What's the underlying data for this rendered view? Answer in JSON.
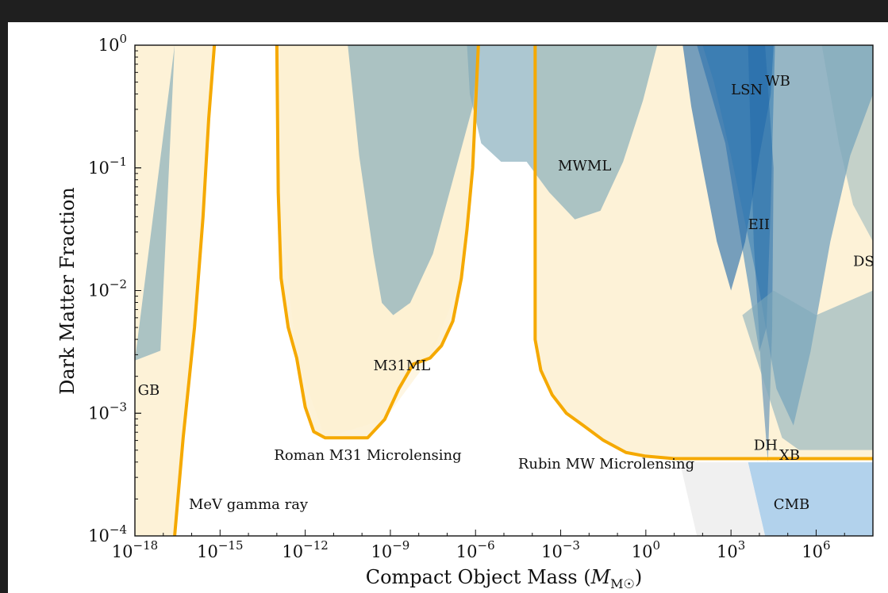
{
  "chart_data": {
    "type": "area",
    "xlabel": "Compact Object Mass",
    "xlabel_unit": "M☉",
    "ylabel": "Dark Matter Fraction",
    "xscale": "log",
    "yscale": "log",
    "xlim": [
      1e-18,
      100000000.0
    ],
    "ylim": [
      0.0001,
      1
    ],
    "x_ticks": [
      {
        "base": "10",
        "exp": "−18",
        "value": -18
      },
      {
        "base": "10",
        "exp": "−15",
        "value": -15
      },
      {
        "base": "10",
        "exp": "−12",
        "value": -12
      },
      {
        "base": "10",
        "exp": "−9",
        "value": -9
      },
      {
        "base": "10",
        "exp": "−6",
        "value": -6
      },
      {
        "base": "10",
        "exp": "−3",
        "value": -3
      },
      {
        "base": "10",
        "exp": "0",
        "value": 0
      },
      {
        "base": "10",
        "exp": "3",
        "value": 3
      },
      {
        "base": "10",
        "exp": "6",
        "value": 6
      }
    ],
    "y_ticks": [
      {
        "base": "10",
        "exp": "0",
        "value": 0
      },
      {
        "base": "10",
        "exp": "−1",
        "value": -1
      },
      {
        "base": "10",
        "exp": "−2",
        "value": -2
      },
      {
        "base": "10",
        "exp": "−3",
        "value": -3
      },
      {
        "base": "10",
        "exp": "−4",
        "value": -4
      }
    ],
    "constraints": [
      {
        "name": "GB",
        "color": "#7fa9b9",
        "opacity": 0.65,
        "points": [
          [
            -18,
            -2.57
          ],
          [
            -17.1,
            -2.49
          ],
          [
            -16.9,
            -1.5
          ],
          [
            -16.6,
            0
          ]
        ]
      },
      {
        "name": "M31ML",
        "color": "#7fa9b9",
        "opacity": 0.65,
        "points": [
          [
            -10.5,
            0
          ],
          [
            -10.1,
            -0.9
          ],
          [
            -9.6,
            -1.7
          ],
          [
            -9.3,
            -2.1
          ],
          [
            -8.9,
            -2.2
          ],
          [
            -8.3,
            -2.1
          ],
          [
            -7.5,
            -1.7
          ],
          [
            -6.8,
            -1.1
          ],
          [
            -6.1,
            -0.5
          ],
          [
            -5.9,
            0
          ]
        ]
      },
      {
        "name": "MWML",
        "color": "#7fa9b9",
        "opacity": 0.65,
        "points": [
          [
            -6.3,
            0
          ],
          [
            -6.2,
            -0.4
          ],
          [
            -5.8,
            -0.8
          ],
          [
            -5.1,
            -0.95
          ],
          [
            -4.2,
            -0.95
          ],
          [
            -3.4,
            -1.2
          ],
          [
            -2.5,
            -1.42
          ],
          [
            -1.6,
            -1.35
          ],
          [
            -0.8,
            -0.95
          ],
          [
            -0.1,
            -0.45
          ],
          [
            0.4,
            0
          ]
        ]
      },
      {
        "name": "EII",
        "color": "#2f7ab3",
        "opacity": 0.55,
        "points": [
          [
            1.8,
            0
          ],
          [
            2.8,
            -0.8
          ],
          [
            3.5,
            -1.8
          ],
          [
            4.0,
            -2.5
          ],
          [
            4.25,
            -2.3
          ],
          [
            4.4,
            -1.3
          ],
          [
            4.55,
            0
          ]
        ]
      },
      {
        "name": "LSN",
        "color": "#1c66a8",
        "opacity": 0.6,
        "points": [
          [
            1.3,
            0
          ],
          [
            4.5,
            0
          ],
          [
            4.4,
            -0.4
          ],
          [
            4.0,
            -0.9
          ],
          [
            3.5,
            -1.6
          ],
          [
            3.0,
            -2.0
          ],
          [
            2.5,
            -1.6
          ],
          [
            2.0,
            -1.0
          ],
          [
            1.6,
            -0.5
          ]
        ]
      },
      {
        "name": "WB",
        "color": "#2f7ab3",
        "opacity": 0.5,
        "points": [
          [
            2.0,
            0
          ],
          [
            8.0,
            0
          ],
          [
            8.0,
            -0.4
          ],
          [
            7.2,
            -0.9
          ],
          [
            6.5,
            -1.6
          ],
          [
            5.8,
            -2.5
          ],
          [
            5.2,
            -3.1
          ],
          [
            4.6,
            -2.8
          ],
          [
            4.0,
            -2.0
          ],
          [
            3.0,
            -0.9
          ],
          [
            2.4,
            -0.3
          ]
        ]
      },
      {
        "name": "DH",
        "color": "#1c66a8",
        "opacity": 0.45,
        "points": [
          [
            4.2,
            0
          ],
          [
            4.5,
            -1.0
          ],
          [
            4.45,
            -2.3
          ],
          [
            4.3,
            -3.4
          ],
          [
            4.1,
            -2.8
          ],
          [
            3.8,
            -1.6
          ],
          [
            3.6,
            0
          ]
        ]
      },
      {
        "name": "DS",
        "color": "#7fa9b9",
        "opacity": 0.45,
        "points": [
          [
            6.2,
            0
          ],
          [
            8.0,
            0
          ],
          [
            8.0,
            -1.6
          ],
          [
            7.3,
            -1.3
          ],
          [
            6.8,
            -0.8
          ]
        ]
      },
      {
        "name": "CMB",
        "color": "#7fb4df",
        "opacity": 0.6,
        "points": [
          [
            3.6,
            -3.4
          ],
          [
            8.0,
            -3.4
          ],
          [
            8.0,
            -4.0
          ],
          [
            4.2,
            -4.0
          ]
        ]
      },
      {
        "name": "XB",
        "color": "#7fa9b9",
        "opacity": 0.55,
        "points": [
          [
            3.4,
            -2.2
          ],
          [
            4.8,
            -3.2
          ],
          [
            5.4,
            -3.3
          ],
          [
            8.0,
            -3.3
          ],
          [
            8.0,
            -2.0
          ],
          [
            6.0,
            -2.2
          ],
          [
            4.5,
            -2.0
          ]
        ]
      }
    ],
    "projections": [
      {
        "name": "MeV gamma ray",
        "color": "#f5a900",
        "points": [
          [
            -16.6,
            -4.0
          ],
          [
            -16.3,
            -3.2
          ],
          [
            -15.9,
            -2.3
          ],
          [
            -15.6,
            -1.4
          ],
          [
            -15.4,
            -0.6
          ],
          [
            -15.2,
            0
          ]
        ]
      },
      {
        "name": "Roman M31 Microlensing",
        "color": "#f5a900",
        "points": [
          [
            -13.0,
            0
          ],
          [
            -12.95,
            -1.2
          ],
          [
            -12.85,
            -1.9
          ],
          [
            -12.6,
            -2.3
          ],
          [
            -12.3,
            -2.55
          ],
          [
            -12.0,
            -2.95
          ],
          [
            -11.7,
            -3.15
          ],
          [
            -11.3,
            -3.2
          ],
          [
            -10.5,
            -3.2
          ],
          [
            -9.8,
            -3.2
          ],
          [
            -9.2,
            -3.05
          ],
          [
            -8.7,
            -2.8
          ],
          [
            -8.2,
            -2.6
          ],
          [
            -7.6,
            -2.55
          ],
          [
            -7.2,
            -2.45
          ],
          [
            -6.8,
            -2.25
          ],
          [
            -6.5,
            -1.9
          ],
          [
            -6.3,
            -1.5
          ],
          [
            -6.1,
            -1.0
          ],
          [
            -6.0,
            -0.5
          ],
          [
            -5.9,
            0
          ]
        ]
      },
      {
        "name": "Rubin MW Microlensing",
        "color": "#f5a900",
        "points": [
          [
            -3.9,
            0
          ],
          [
            -3.9,
            -2.4
          ],
          [
            -3.7,
            -2.65
          ],
          [
            -3.3,
            -2.85
          ],
          [
            -2.8,
            -3.0
          ],
          [
            -2.2,
            -3.1
          ],
          [
            -1.5,
            -3.22
          ],
          [
            -0.7,
            -3.32
          ],
          [
            0,
            -3.35
          ],
          [
            1,
            -3.37
          ],
          [
            3,
            -3.37
          ],
          [
            5,
            -3.37
          ],
          [
            8,
            -3.37
          ]
        ]
      }
    ],
    "annotations": [
      {
        "text": "GB",
        "x": -17.9,
        "y": -2.85
      },
      {
        "text": "M31ML",
        "x": -9.6,
        "y": -2.65
      },
      {
        "text": "MWML",
        "x": -3.1,
        "y": -1.02
      },
      {
        "text": "LSN",
        "x": 3.0,
        "y": -0.4
      },
      {
        "text": "WB",
        "x": 4.2,
        "y": -0.33
      },
      {
        "text": "EII",
        "x": 3.6,
        "y": -1.5
      },
      {
        "text": "DS",
        "x": 7.3,
        "y": -1.8
      },
      {
        "text": "DH",
        "x": 3.8,
        "y": -3.3
      },
      {
        "text": "XB",
        "x": 4.7,
        "y": -3.38
      },
      {
        "text": "CMB",
        "x": 4.5,
        "y": -3.78
      },
      {
        "text": "MeV gamma ray",
        "x": -16.1,
        "y": -3.78
      },
      {
        "text": "Roman M31 Microlensing",
        "x": -13.1,
        "y": -3.38
      },
      {
        "text": "Rubin MW Microlensing",
        "x": -4.5,
        "y": -3.45
      }
    ],
    "grid": false
  }
}
